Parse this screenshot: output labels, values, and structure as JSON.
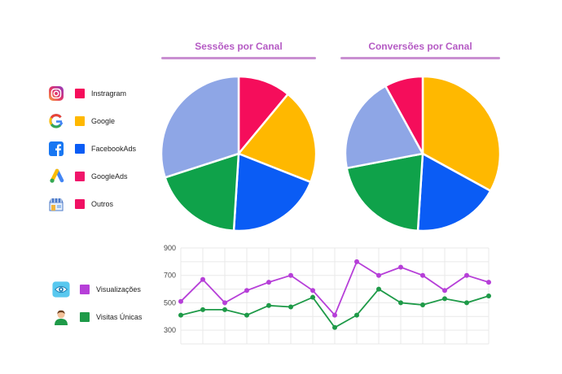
{
  "pie_titles": {
    "sessions": "Sessões por Canal",
    "conversions": "Conversões por Canal"
  },
  "channels": [
    {
      "label": "Instragram",
      "color": "#f50d5b",
      "icon": "instagram-icon"
    },
    {
      "label": "Google",
      "color": "#ffb800",
      "icon": "google-icon"
    },
    {
      "label": "FacebookAds",
      "color": "#0a5cf5",
      "icon": "facebook-icon"
    },
    {
      "label": "GoogleAds",
      "color": "#f0156a",
      "icon": "google-ads-icon"
    },
    {
      "label": "Outros",
      "color": "#f01063",
      "icon": "store-icon"
    }
  ],
  "line_legend": [
    {
      "label": "Visualizações",
      "color": "#b63fd8",
      "icon": "eye-icon"
    },
    {
      "label": "Visitas Únicas",
      "color": "#1e9a48",
      "icon": "user-icon"
    }
  ],
  "chart_data": [
    {
      "type": "pie",
      "title": "Sessões por Canal",
      "slice_colors": [
        "#f50d5b",
        "#ffb800",
        "#0a5cf5",
        "#0fa24a",
        "#8ea6e6"
      ],
      "values": [
        11,
        20,
        20,
        19,
        30
      ]
    },
    {
      "type": "pie",
      "title": "Conversões por Canal",
      "slice_colors": [
        "#ffb800",
        "#0a5cf5",
        "#0fa24a",
        "#8ea6e6",
        "#f50d5b"
      ],
      "values": [
        33,
        18,
        21,
        20,
        8
      ]
    },
    {
      "type": "line",
      "ylim": [
        200,
        900
      ],
      "yticks": [
        300,
        500,
        700,
        900
      ],
      "grid": true,
      "series": [
        {
          "name": "Visualizações",
          "color": "#b63fd8",
          "values": [
            510,
            670,
            500,
            590,
            650,
            700,
            590,
            410,
            800,
            700,
            760,
            700,
            590,
            700,
            650
          ]
        },
        {
          "name": "Visitas Únicas",
          "color": "#1e9a48",
          "values": [
            410,
            450,
            450,
            410,
            480,
            470,
            540,
            320,
            410,
            600,
            500,
            485,
            530,
            500,
            550
          ]
        }
      ]
    }
  ]
}
